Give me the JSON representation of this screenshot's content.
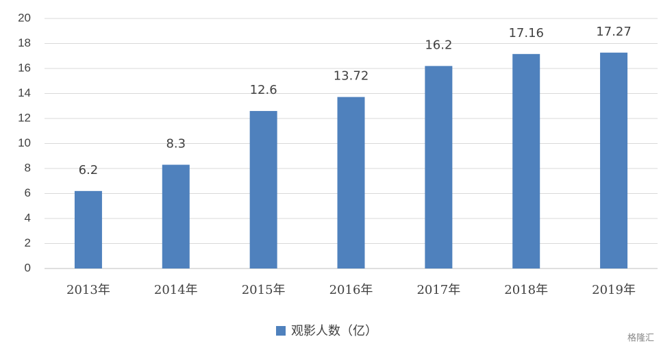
{
  "chart_data": {
    "type": "bar",
    "categories": [
      "2013年",
      "2014年",
      "2015年",
      "2016年",
      "2017年",
      "2018年",
      "2019年"
    ],
    "series": [
      {
        "name": "观影人数（亿）",
        "color": "#4f81bd",
        "values": [
          6.2,
          8.3,
          12.6,
          13.72,
          16.2,
          17.16,
          17.27
        ]
      }
    ],
    "ylim": [
      0,
      20
    ],
    "yticks": [
      0,
      2,
      4,
      6,
      8,
      10,
      12,
      14,
      16,
      18,
      20
    ],
    "grid": true,
    "watermark": "格隆汇"
  }
}
